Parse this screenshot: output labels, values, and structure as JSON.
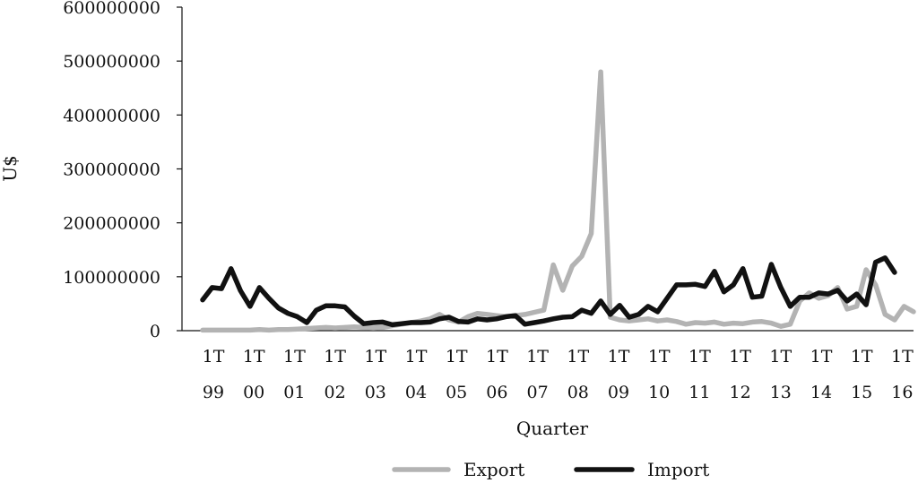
{
  "chart_data": {
    "type": "line",
    "title": "",
    "xlabel": "Quarter",
    "ylabel": "U$",
    "ylim": [
      0,
      600000000
    ],
    "yticks": [
      0,
      100000000,
      200000000,
      300000000,
      400000000,
      500000000,
      600000000
    ],
    "ytick_labels": [
      "0",
      "100000000",
      "200000000",
      "300000000",
      "400000000",
      "500000000",
      "600000000"
    ],
    "xtick_labels": [
      {
        "q": "1T",
        "y": "99"
      },
      {
        "q": "1T",
        "y": "00"
      },
      {
        "q": "1T",
        "y": "01"
      },
      {
        "q": "1T",
        "y": "02"
      },
      {
        "q": "1T",
        "y": "03"
      },
      {
        "q": "1T",
        "y": "04"
      },
      {
        "q": "1T",
        "y": "05"
      },
      {
        "q": "1T",
        "y": "06"
      },
      {
        "q": "1T",
        "y": "07"
      },
      {
        "q": "1T",
        "y": "08"
      },
      {
        "q": "1T",
        "y": "09"
      },
      {
        "q": "1T",
        "y": "10"
      },
      {
        "q": "1T",
        "y": "11"
      },
      {
        "q": "1T",
        "y": "12"
      },
      {
        "q": "1T",
        "y": "13"
      },
      {
        "q": "1T",
        "y": "14"
      },
      {
        "q": "1T",
        "y": "15"
      },
      {
        "q": "1T",
        "y": "16"
      }
    ],
    "grid": false,
    "legend_position": "bottom",
    "series": [
      {
        "name": "Export",
        "color": "#b3b3b3",
        "values": [
          1000000,
          1000000,
          1000000,
          1000000,
          1000000,
          1000000,
          2000000,
          1000000,
          2000000,
          2000000,
          3000000,
          4000000,
          5000000,
          6000000,
          5000000,
          6000000,
          7000000,
          6000000,
          5000000,
          6000000,
          9000000,
          12000000,
          15000000,
          18000000,
          22000000,
          30000000,
          20000000,
          16000000,
          26000000,
          32000000,
          30000000,
          28000000,
          26000000,
          28000000,
          30000000,
          34000000,
          38000000,
          122000000,
          75000000,
          120000000,
          138000000,
          180000000,
          480000000,
          25000000,
          20000000,
          18000000,
          20000000,
          22000000,
          18000000,
          20000000,
          17000000,
          12000000,
          15000000,
          14000000,
          16000000,
          12000000,
          14000000,
          13000000,
          16000000,
          17000000,
          14000000,
          8000000,
          12000000,
          55000000,
          70000000,
          60000000,
          65000000,
          80000000,
          40000000,
          45000000,
          113000000,
          85000000,
          30000000,
          20000000,
          45000000,
          35000000
        ]
      },
      {
        "name": "Import",
        "color": "#111111",
        "values": [
          57000000,
          80000000,
          78000000,
          115000000,
          74000000,
          45000000,
          80000000,
          60000000,
          42000000,
          32000000,
          26000000,
          15000000,
          38000000,
          46000000,
          46000000,
          44000000,
          27000000,
          13000000,
          15000000,
          16000000,
          11000000,
          13000000,
          15000000,
          15000000,
          16000000,
          22000000,
          25000000,
          17000000,
          16000000,
          22000000,
          20000000,
          22000000,
          26000000,
          28000000,
          12000000,
          15000000,
          18000000,
          22000000,
          25000000,
          26000000,
          38000000,
          32000000,
          55000000,
          30000000,
          47000000,
          25000000,
          30000000,
          45000000,
          35000000,
          60000000,
          85000000,
          85000000,
          86000000,
          82000000,
          110000000,
          72000000,
          85000000,
          115000000,
          62000000,
          64000000,
          123000000,
          80000000,
          45000000,
          62000000,
          62000000,
          70000000,
          68000000,
          75000000,
          55000000,
          68000000,
          48000000,
          127000000,
          135000000,
          108000000
        ]
      }
    ]
  }
}
